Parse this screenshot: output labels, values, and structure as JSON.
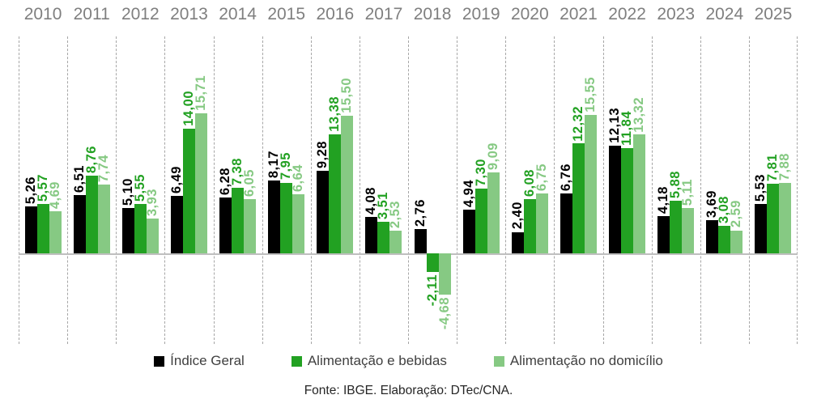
{
  "chart_data": {
    "type": "bar",
    "title": "",
    "categories": [
      "2010",
      "2011",
      "2012",
      "2013",
      "2014",
      "2015",
      "2016",
      "2017",
      "2018",
      "2019",
      "2020",
      "2021",
      "2022",
      "2023",
      "2024",
      "2025"
    ],
    "series": [
      {
        "name": "Índice Geral",
        "color": "#000000",
        "values": [
          5.26,
          6.51,
          5.1,
          6.49,
          6.28,
          8.17,
          9.28,
          4.08,
          2.76,
          4.94,
          2.4,
          6.76,
          12.13,
          4.18,
          3.69,
          5.53
        ]
      },
      {
        "name": "Alimentação e bebidas",
        "color": "#22a122",
        "values": [
          5.57,
          8.76,
          5.55,
          14.0,
          7.38,
          7.95,
          13.38,
          3.51,
          -2.11,
          7.3,
          6.08,
          12.32,
          11.84,
          5.88,
          3.08,
          7.81
        ]
      },
      {
        "name": "Alimentação no domicílio",
        "color": "#86c983",
        "values": [
          4.69,
          7.74,
          3.93,
          15.71,
          6.05,
          6.64,
          15.5,
          2.53,
          -4.68,
          9.09,
          6.75,
          15.55,
          13.32,
          5.11,
          2.59,
          7.88
        ]
      }
    ],
    "value_labels": "rotated 90°, bold, decimal comma (pt-BR), colored per series",
    "decimal_separator": ",",
    "ylim": [
      -5.5,
      24.5
    ],
    "grid": "vertical dashed lines between category groups",
    "legend_position": "bottom-center",
    "xlabel": "",
    "ylabel": ""
  },
  "footer": {
    "source_text": "Fonte: IBGE. Elaboração: DTec/CNA."
  },
  "colors": {
    "year_label": "#7f7f7f",
    "dashed_gridline": "#a6a6a6",
    "zero_line": "#bfbfbf",
    "legend_text": "#404040",
    "footer_text": "#262626",
    "background": "#ffffff"
  }
}
